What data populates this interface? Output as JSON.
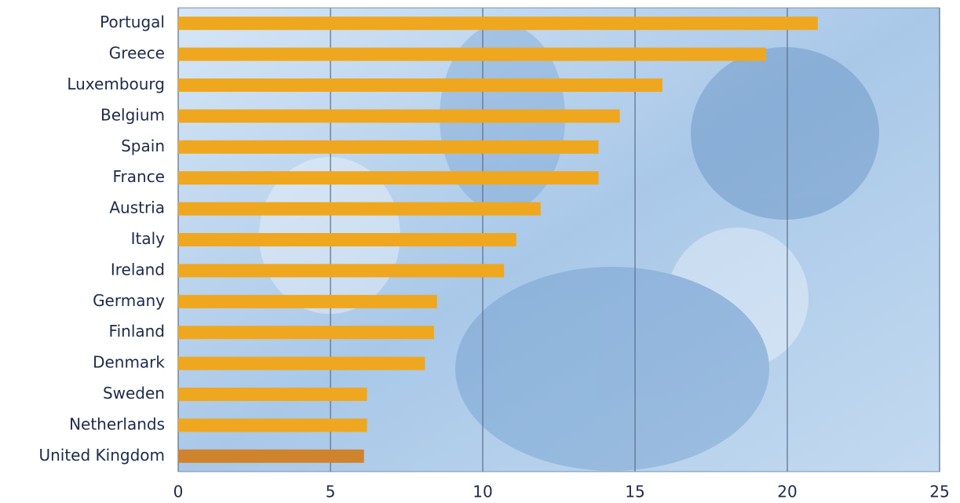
{
  "chart_data": {
    "type": "hbar",
    "categories": [
      "Portugal",
      "Greece",
      "Luxembourg",
      "Belgium",
      "Spain",
      "France",
      "Austria",
      "Italy",
      "Ireland",
      "Germany",
      "Finland",
      "Denmark",
      "Sweden",
      "Netherlands",
      "United Kingdom"
    ],
    "values": [
      21.0,
      19.3,
      15.9,
      14.5,
      13.8,
      13.8,
      11.9,
      11.1,
      10.7,
      8.5,
      8.4,
      8.1,
      6.2,
      6.2,
      6.1
    ],
    "colors": [
      "#efa71f",
      "#efa71f",
      "#efa71f",
      "#efa71f",
      "#efa71f",
      "#efa71f",
      "#efa71f",
      "#efa71f",
      "#efa71f",
      "#efa71f",
      "#efa71f",
      "#efa71f",
      "#efa71f",
      "#efa71f",
      "#cf832c"
    ],
    "xlim": [
      0,
      25
    ],
    "xticks": [
      0,
      5,
      10,
      15,
      20,
      25
    ],
    "grid": true
  }
}
